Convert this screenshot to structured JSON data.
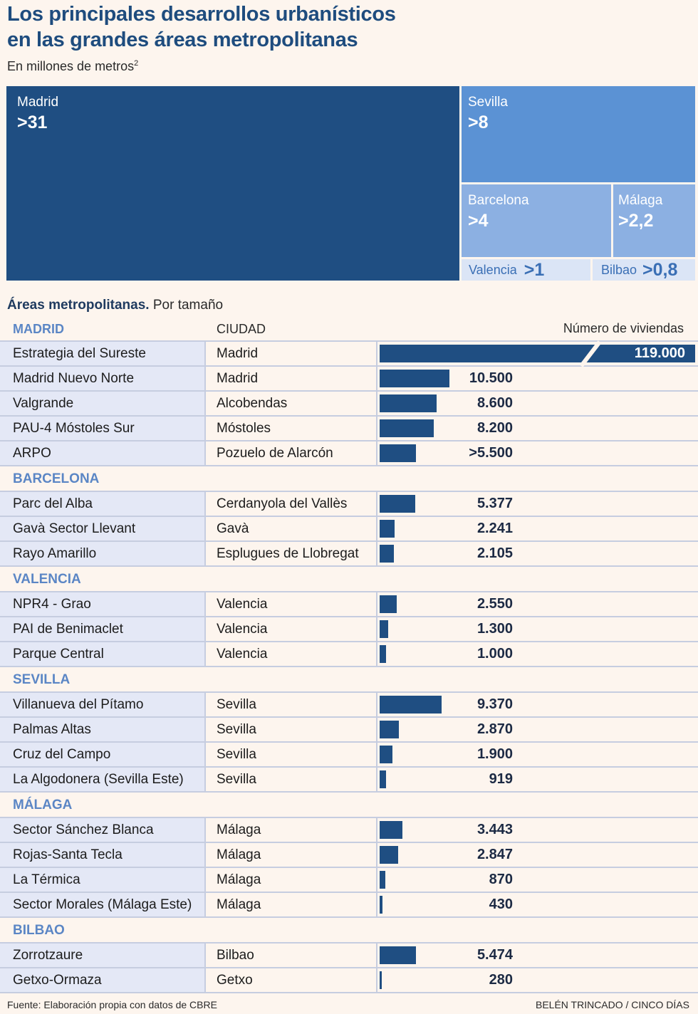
{
  "title": {
    "line1": "Los principales desarrollos urbanísticos",
    "line2": "en las grandes áreas metropolitanas"
  },
  "subtitle": {
    "text": "En millones de metros",
    "superscript": "2"
  },
  "colors": {
    "dark_blue": "#1f4e82",
    "mid_blue": "#5b92d4",
    "light_blue": "#8cb0e2",
    "pale_blue": "#dbe5f6",
    "region_label": "#5b86c5",
    "background": "#fdf5ee"
  },
  "section": {
    "bold": "Áreas metropolitanas.",
    "rest": " Por tamaño"
  },
  "table_header": {
    "region": "MADRID",
    "city": "CIUDAD",
    "number": "Número de viviendas"
  },
  "footer": {
    "source": "Fuente: Elaboración propia con datos de CBRE",
    "credit": "BELÉN TRINCADO / CINCO DÍAS"
  },
  "chart_data": [
    {
      "type": "treemap",
      "title": "Los principales desarrollos urbanísticos en las grandes áreas metropolitanas",
      "subtitle": "En millones de metros2",
      "items": [
        {
          "name": "Madrid",
          "label": ">31",
          "value": 31
        },
        {
          "name": "Sevilla",
          "label": ">8",
          "value": 8
        },
        {
          "name": "Barcelona",
          "label": ">4",
          "value": 4
        },
        {
          "name": "Málaga",
          "label": ">2,2",
          "value": 2.2
        },
        {
          "name": "Valencia",
          "label": ">1",
          "value": 1
        },
        {
          "name": "Bilbao",
          "label": ">0,8",
          "value": 0.8
        }
      ]
    },
    {
      "type": "bar",
      "title": "Áreas metropolitanas. Por tamaño",
      "value_label": "Número de viviendas",
      "max_display_value": 11500,
      "broken_bar": {
        "project": "Estrategia del Sureste",
        "value": 119000
      },
      "groups": [
        {
          "region": "MADRID",
          "rows": [
            {
              "project": "Estrategia del Sureste",
              "city": "Madrid",
              "value": 119000,
              "label": "119.000"
            },
            {
              "project": "Madrid Nuevo Norte",
              "city": "Madrid",
              "value": 10500,
              "label": "10.500"
            },
            {
              "project": "Valgrande",
              "city": "Alcobendas",
              "value": 8600,
              "label": "8.600"
            },
            {
              "project": "PAU-4 Móstoles Sur",
              "city": "Móstoles",
              "value": 8200,
              "label": "8.200"
            },
            {
              "project": "ARPO",
              "city": "Pozuelo de Alarcón",
              "value": 5500,
              "label": ">5.500"
            }
          ]
        },
        {
          "region": "BARCELONA",
          "rows": [
            {
              "project": "Parc del Alba",
              "city": "Cerdanyola del Vallès",
              "value": 5377,
              "label": "5.377"
            },
            {
              "project": "Gavà Sector Llevant",
              "city": "Gavà",
              "value": 2241,
              "label": "2.241"
            },
            {
              "project": "Rayo Amarillo",
              "city": "Esplugues de Llobregat",
              "value": 2105,
              "label": "2.105"
            }
          ]
        },
        {
          "region": "VALENCIA",
          "rows": [
            {
              "project": "NPR4 - Grao",
              "city": "Valencia",
              "value": 2550,
              "label": "2.550"
            },
            {
              "project": "PAI de Benimaclet",
              "city": "Valencia",
              "value": 1300,
              "label": "1.300"
            },
            {
              "project": "Parque Central",
              "city": "Valencia",
              "value": 1000,
              "label": "1.000"
            }
          ]
        },
        {
          "region": "SEVILLA",
          "rows": [
            {
              "project": "Villanueva del Pítamo",
              "city": "Sevilla",
              "value": 9370,
              "label": "9.370"
            },
            {
              "project": "Palmas Altas",
              "city": "Sevilla",
              "value": 2870,
              "label": "2.870"
            },
            {
              "project": "Cruz del Campo",
              "city": "Sevilla",
              "value": 1900,
              "label": "1.900"
            },
            {
              "project": "La Algodonera (Sevilla Este)",
              "city": "Sevilla",
              "value": 919,
              "label": "919"
            }
          ]
        },
        {
          "region": "MÁLAGA",
          "rows": [
            {
              "project": "Sector Sánchez Blanca",
              "city": "Málaga",
              "value": 3443,
              "label": "3.443"
            },
            {
              "project": "Rojas-Santa Tecla",
              "city": "Málaga",
              "value": 2847,
              "label": "2.847"
            },
            {
              "project": "La Térmica",
              "city": "Málaga",
              "value": 870,
              "label": "870"
            },
            {
              "project": "Sector Morales (Málaga Este)",
              "city": "Málaga",
              "value": 430,
              "label": "430"
            }
          ]
        },
        {
          "region": "BILBAO",
          "rows": [
            {
              "project": "Zorrotzaure",
              "city": "Bilbao",
              "value": 5474,
              "label": "5.474"
            },
            {
              "project": "Getxo-Ormaza",
              "city": "Getxo",
              "value": 280,
              "label": "280"
            }
          ]
        }
      ]
    }
  ]
}
